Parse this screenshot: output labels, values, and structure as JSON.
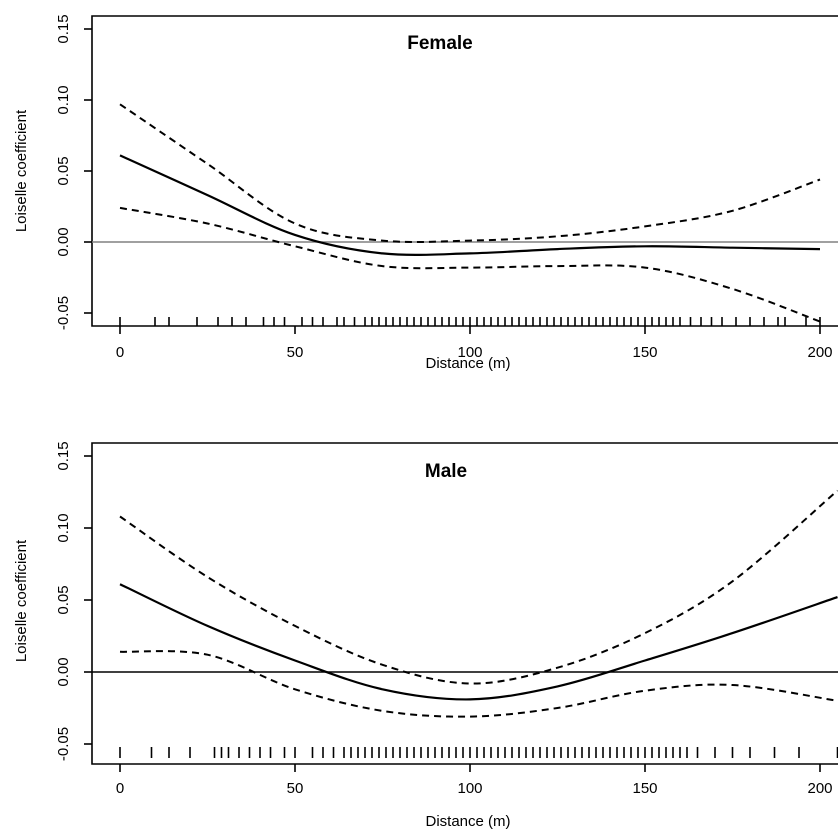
{
  "chart_data": [
    {
      "type": "line",
      "title": "Female",
      "xlabel": "Distance (m)",
      "ylabel": "Loiselle coefficient",
      "xlim": [
        -8,
        205
      ],
      "ylim": [
        -0.06,
        0.155
      ],
      "x_ticks": [
        0,
        50,
        100,
        150,
        200
      ],
      "y_ticks": [
        -0.05,
        0.0,
        0.05,
        0.1,
        0.15
      ],
      "x_tick_labels": [
        "0",
        "50",
        "100",
        "150",
        "200"
      ],
      "y_tick_labels": [
        "-0.05",
        "0.00",
        "0.05",
        "0.10",
        "0.15"
      ],
      "reference_line_y": 0.0,
      "reference_line_color": "#808080",
      "x": [
        0,
        25,
        50,
        75,
        100,
        125,
        150,
        175,
        200
      ],
      "series": [
        {
          "style": "solid",
          "values": [
            0.061,
            0.033,
            0.005,
            -0.008,
            -0.008,
            -0.005,
            -0.003,
            -0.004,
            -0.005
          ]
        },
        {
          "style": "dashed",
          "values": [
            0.097,
            0.055,
            0.013,
            0.001,
            0.001,
            0.004,
            0.011,
            0.022,
            0.044
          ]
        },
        {
          "style": "dashed",
          "values": [
            0.024,
            0.013,
            -0.003,
            -0.017,
            -0.018,
            -0.017,
            -0.018,
            -0.033,
            -0.056
          ]
        }
      ],
      "rug": [
        0,
        10,
        14,
        22,
        28,
        32,
        36,
        41,
        44,
        47,
        52,
        55,
        58,
        62,
        64,
        67,
        70,
        72,
        74,
        76,
        78,
        80,
        82,
        84,
        86,
        88,
        90,
        92,
        94,
        96,
        98,
        100,
        102,
        104,
        106,
        108,
        110,
        112,
        114,
        116,
        118,
        120,
        122,
        124,
        126,
        128,
        130,
        132,
        134,
        136,
        138,
        140,
        142,
        144,
        146,
        148,
        150,
        152,
        154,
        156,
        158,
        160,
        163,
        166,
        169,
        172,
        176,
        180,
        184,
        188,
        190,
        196,
        200
      ]
    },
    {
      "type": "line",
      "title": "Male",
      "xlabel": "Distance (m)",
      "ylabel": "Loiselle coefficient",
      "xlim": [
        -8,
        205
      ],
      "ylim": [
        -0.06,
        0.155
      ],
      "x_ticks": [
        0,
        50,
        100,
        150,
        200
      ],
      "y_ticks": [
        -0.05,
        0.0,
        0.05,
        0.1,
        0.15
      ],
      "x_tick_labels": [
        "0",
        "50",
        "100",
        "150",
        "200"
      ],
      "y_tick_labels": [
        "-0.05",
        "0.00",
        "0.05",
        "0.10",
        "0.15"
      ],
      "reference_line_y": 0.0,
      "reference_line_color": "#000000",
      "x": [
        0,
        25,
        50,
        75,
        100,
        125,
        150,
        175,
        205
      ],
      "series": [
        {
          "style": "solid",
          "values": [
            0.061,
            0.032,
            0.008,
            -0.012,
            -0.019,
            -0.01,
            0.008,
            0.027,
            0.052
          ]
        },
        {
          "style": "dashed",
          "values": [
            0.108,
            0.066,
            0.032,
            0.005,
            -0.008,
            0.003,
            0.027,
            0.063,
            0.126
          ]
        },
        {
          "style": "dashed",
          "values": [
            0.014,
            0.012,
            -0.012,
            -0.027,
            -0.031,
            -0.025,
            -0.013,
            -0.009,
            -0.02
          ]
        }
      ],
      "rug": [
        0,
        9,
        14,
        20,
        27,
        29,
        31,
        34,
        37,
        40,
        43,
        47,
        50,
        55,
        58,
        61,
        64,
        66,
        68,
        70,
        72,
        74,
        76,
        78,
        80,
        82,
        84,
        86,
        88,
        90,
        92,
        94,
        96,
        98,
        100,
        102,
        104,
        106,
        108,
        110,
        112,
        114,
        116,
        118,
        120,
        122,
        124,
        126,
        128,
        130,
        132,
        134,
        136,
        138,
        140,
        142,
        144,
        146,
        148,
        150,
        152,
        154,
        156,
        158,
        160,
        162,
        165,
        170,
        175,
        180,
        187,
        194,
        205
      ]
    }
  ]
}
